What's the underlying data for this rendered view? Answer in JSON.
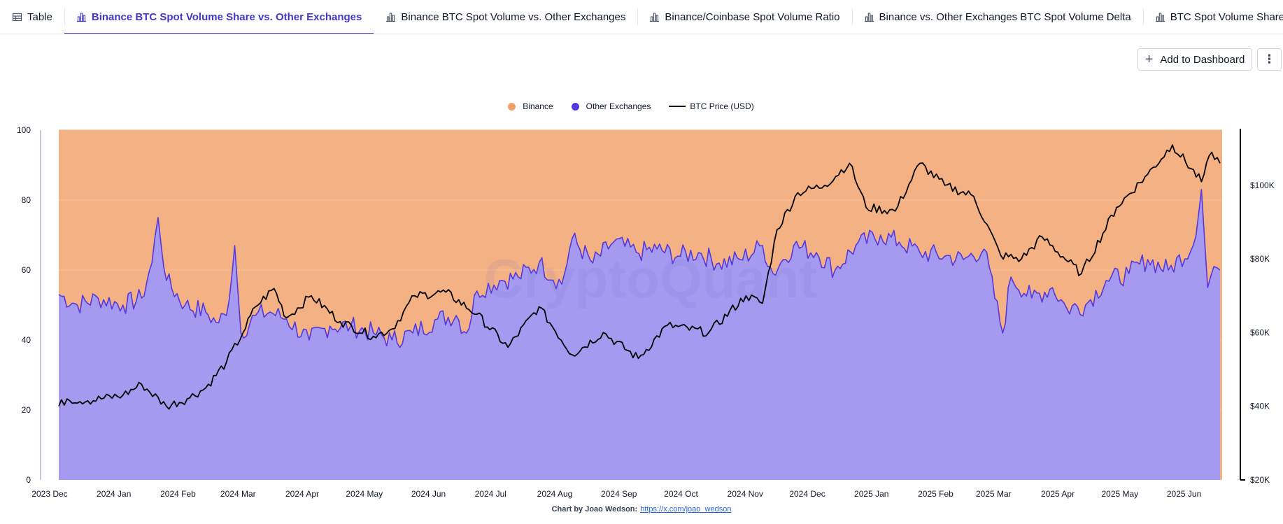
{
  "tabs": [
    {
      "label": "Table",
      "icon": "table-icon",
      "active": false
    },
    {
      "label": "Binance BTC Spot Volume Share vs. Other Exchanges",
      "icon": "bar-chart-icon",
      "active": true
    },
    {
      "label": "Binance BTC Spot Volume vs. Other Exchanges",
      "icon": "bar-chart-icon",
      "active": false
    },
    {
      "label": "Binance/Coinbase Spot Volume Ratio",
      "icon": "bar-chart-icon",
      "active": false
    },
    {
      "label": "Binance vs. Other Exchanges BTC Spot Volume Delta",
      "icon": "bar-chart-icon",
      "active": false
    },
    {
      "label": "BTC Spot Volume Share per Exchange",
      "icon": "bar-chart-icon",
      "active": false
    },
    {
      "label": "BTC S",
      "icon": "bar-chart-icon",
      "active": false
    }
  ],
  "toolbar": {
    "add_label": "Add to Dashboard",
    "add_icon": "plus-icon",
    "more_label": "⋮",
    "more_icon": "more-vertical-icon"
  },
  "credit": {
    "prefix": "Chart by Joao Wedson:",
    "link": "https://x.com/joao_wedson"
  },
  "watermark": "CryptoQuant",
  "colors": {
    "binance": "#f4b183",
    "binance_legend": "#f0a066",
    "other_fill": "#a59af0",
    "other_line": "#5438e0",
    "price_line": "#000000",
    "accent": "#4338ca"
  },
  "chart_data": {
    "type": "area",
    "stacked_percent": true,
    "x_start": "2023-12-01",
    "x_end": "2025-06-15",
    "xticks": [
      "2023 Dec",
      "2024 Jan",
      "2024 Feb",
      "2024 Mar",
      "2024 Apr",
      "2024 May",
      "2024 Jun",
      "2024 Jul",
      "2024 Aug",
      "2024 Sep",
      "2024 Oct",
      "2024 Nov",
      "2024 Dec",
      "2025 Jan",
      "2025 Feb",
      "2025 Mar",
      "2025 Apr",
      "2025 May",
      "2025 Jun"
    ],
    "y_left": {
      "min": 0,
      "max": 100,
      "ticks": [
        "0",
        "20",
        "40",
        "60",
        "80",
        "100"
      ]
    },
    "y_right": {
      "min": 20000,
      "max": 115000,
      "ticks": [
        "$20K",
        "$40K",
        "$60K",
        "$80K",
        "$100K"
      ],
      "tick_values": [
        20000,
        40000,
        60000,
        80000,
        100000
      ]
    },
    "legend": [
      {
        "name": "Binance",
        "kind": "dot"
      },
      {
        "name": "Other Exchanges",
        "kind": "dot"
      },
      {
        "name": "BTC Price (USD)",
        "kind": "line"
      }
    ],
    "series": [
      {
        "name": "Other Exchanges",
        "axis": "left",
        "points": [
          [
            "2023-12-01",
            53
          ],
          [
            "2023-12-10",
            50
          ],
          [
            "2023-12-20",
            52
          ],
          [
            "2024-01-01",
            50
          ],
          [
            "2024-01-10",
            52
          ],
          [
            "2024-01-15",
            62
          ],
          [
            "2024-01-18",
            75
          ],
          [
            "2024-01-22",
            57
          ],
          [
            "2024-01-31",
            50
          ],
          [
            "2024-02-10",
            48
          ],
          [
            "2024-02-15",
            45
          ],
          [
            "2024-02-20",
            47
          ],
          [
            "2024-02-24",
            67
          ],
          [
            "2024-02-27",
            42
          ],
          [
            "2024-03-05",
            47
          ],
          [
            "2024-03-12",
            48
          ],
          [
            "2024-03-20",
            46
          ],
          [
            "2024-03-31",
            40
          ],
          [
            "2024-04-10",
            44
          ],
          [
            "2024-04-20",
            44
          ],
          [
            "2024-05-01",
            42
          ],
          [
            "2024-05-10",
            40
          ],
          [
            "2024-05-20",
            42
          ],
          [
            "2024-06-01",
            46
          ],
          [
            "2024-06-10",
            47
          ],
          [
            "2024-06-15",
            42
          ],
          [
            "2024-06-20",
            54
          ],
          [
            "2024-07-01",
            57
          ],
          [
            "2024-07-10",
            58
          ],
          [
            "2024-07-20",
            62
          ],
          [
            "2024-07-31",
            56
          ],
          [
            "2024-08-05",
            69
          ],
          [
            "2024-08-15",
            62
          ],
          [
            "2024-08-25",
            68
          ],
          [
            "2024-09-05",
            65
          ],
          [
            "2024-09-15",
            66
          ],
          [
            "2024-09-25",
            64
          ],
          [
            "2024-10-05",
            65
          ],
          [
            "2024-10-15",
            62
          ],
          [
            "2024-10-25",
            63
          ],
          [
            "2024-11-05",
            67
          ],
          [
            "2024-11-10",
            59
          ],
          [
            "2024-11-15",
            63
          ],
          [
            "2024-11-20",
            67
          ],
          [
            "2024-12-01",
            65
          ],
          [
            "2024-12-10",
            60
          ],
          [
            "2024-12-20",
            67
          ],
          [
            "2025-01-01",
            70
          ],
          [
            "2025-01-10",
            68
          ],
          [
            "2025-01-20",
            65
          ],
          [
            "2025-02-01",
            64
          ],
          [
            "2025-02-10",
            63
          ],
          [
            "2025-02-20",
            66
          ],
          [
            "2025-03-01",
            42
          ],
          [
            "2025-03-05",
            58
          ],
          [
            "2025-03-15",
            52
          ],
          [
            "2025-03-25",
            55
          ],
          [
            "2025-04-01",
            49
          ],
          [
            "2025-04-10",
            50
          ],
          [
            "2025-04-20",
            57
          ],
          [
            "2025-05-01",
            59
          ],
          [
            "2025-05-10",
            63
          ],
          [
            "2025-05-20",
            60
          ],
          [
            "2025-06-01",
            67
          ],
          [
            "2025-06-05",
            83
          ],
          [
            "2025-06-08",
            55
          ],
          [
            "2025-06-11",
            61
          ],
          [
            "2025-06-14",
            60
          ]
        ]
      },
      {
        "name": "BTC Price (USD)",
        "axis": "right",
        "points": [
          [
            "2023-12-01",
            40000
          ],
          [
            "2023-12-05",
            42000
          ],
          [
            "2023-12-15",
            41500
          ],
          [
            "2024-01-01",
            43000
          ],
          [
            "2024-01-10",
            46000
          ],
          [
            "2024-01-22",
            40000
          ],
          [
            "2024-02-01",
            42000
          ],
          [
            "2024-02-10",
            45000
          ],
          [
            "2024-02-20",
            52000
          ],
          [
            "2024-02-28",
            60000
          ],
          [
            "2024-03-05",
            67000
          ],
          [
            "2024-03-14",
            72000
          ],
          [
            "2024-03-20",
            64000
          ],
          [
            "2024-04-01",
            70000
          ],
          [
            "2024-04-15",
            63000
          ],
          [
            "2024-05-01",
            59000
          ],
          [
            "2024-05-10",
            61000
          ],
          [
            "2024-05-21",
            70000
          ],
          [
            "2024-06-05",
            71000
          ],
          [
            "2024-06-20",
            65000
          ],
          [
            "2024-07-05",
            56000
          ],
          [
            "2024-07-20",
            67000
          ],
          [
            "2024-08-05",
            54000
          ],
          [
            "2024-08-20",
            60000
          ],
          [
            "2024-09-06",
            53000
          ],
          [
            "2024-09-20",
            62000
          ],
          [
            "2024-10-10",
            60000
          ],
          [
            "2024-10-28",
            70000
          ],
          [
            "2024-11-05",
            68000
          ],
          [
            "2024-11-12",
            88000
          ],
          [
            "2024-11-22",
            98000
          ],
          [
            "2024-12-05",
            100000
          ],
          [
            "2024-12-17",
            106000
          ],
          [
            "2024-12-25",
            94000
          ],
          [
            "2025-01-08",
            93000
          ],
          [
            "2025-01-20",
            106000
          ],
          [
            "2025-02-01",
            100000
          ],
          [
            "2025-02-15",
            97000
          ],
          [
            "2025-02-28",
            81000
          ],
          [
            "2025-03-10",
            80000
          ],
          [
            "2025-03-20",
            86000
          ],
          [
            "2025-04-08",
            76000
          ],
          [
            "2025-04-25",
            94000
          ],
          [
            "2025-05-10",
            103000
          ],
          [
            "2025-05-22",
            111000
          ],
          [
            "2025-06-05",
            101000
          ],
          [
            "2025-06-10",
            109000
          ],
          [
            "2025-06-14",
            106000
          ]
        ]
      },
      {
        "name": "Binance",
        "axis": "left",
        "fill_to": 100
      }
    ]
  }
}
